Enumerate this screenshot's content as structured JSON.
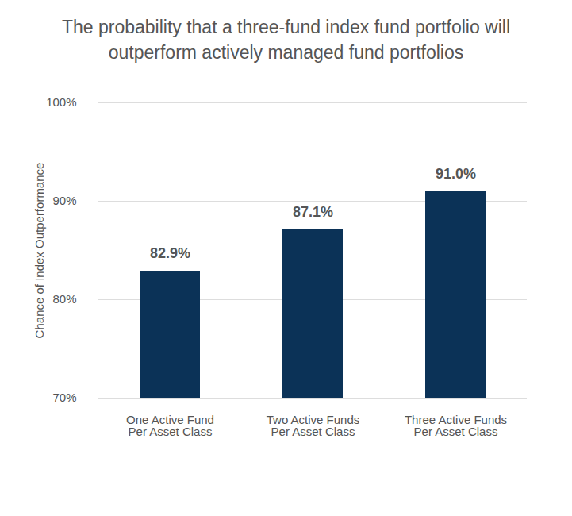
{
  "chart_data": {
    "type": "bar",
    "title": "The probability that a three-fund index fund portfolio will outperform actively managed fund portfolios",
    "y_label": "Chance of Index Outperformance",
    "categories": [
      "One Active Fund\nPer Asset Class",
      "Two Active Funds\nPer Asset Class",
      "Three Active Funds\nPer Asset Class"
    ],
    "values": [
      82.9,
      87.1,
      91.0
    ],
    "value_labels": [
      "82.9%",
      "87.1%",
      "91.0%"
    ],
    "color": "#0b3257",
    "ylim": [
      70,
      100
    ],
    "yticks": [
      {
        "value": 70,
        "label": "70%"
      },
      {
        "value": 80,
        "label": "80%"
      },
      {
        "value": 90,
        "label": "90%"
      },
      {
        "value": 100,
        "label": "100%"
      }
    ],
    "grid": true,
    "data_labels": true
  }
}
